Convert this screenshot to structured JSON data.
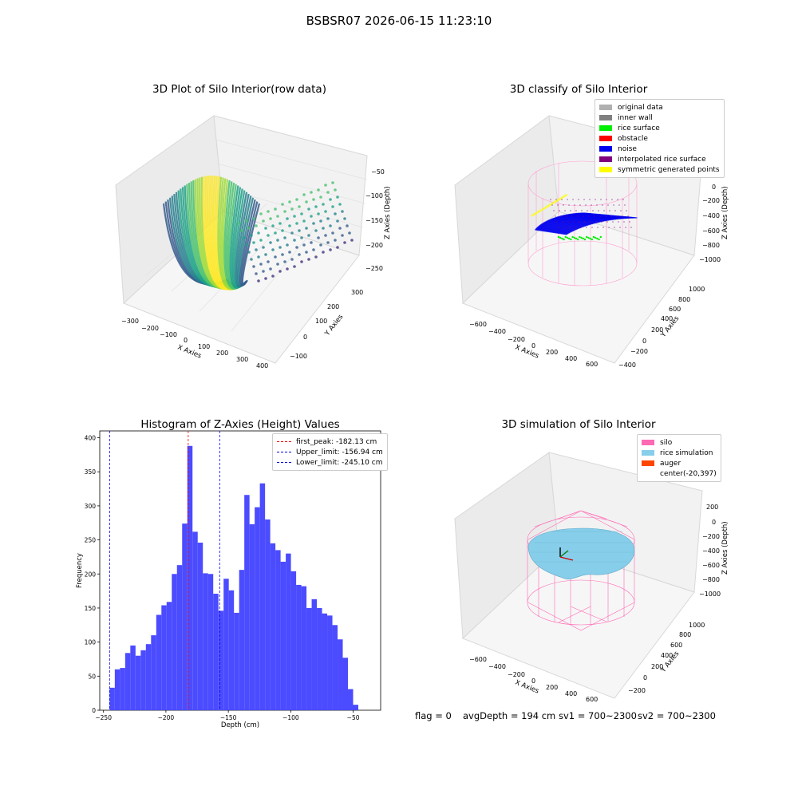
{
  "suptitle": "BSBSR07 2026-06-15 11:23:10",
  "plots": {
    "raw": {
      "title": "3D Plot of Silo Interior(row data)",
      "xlabel": "X Axies",
      "ylabel": "Y Axies",
      "zlabel": "Z Axies (Depth)",
      "x_ticks": [
        "−300",
        "−200",
        "−100",
        "0",
        "100",
        "200",
        "300",
        "400"
      ],
      "y_ticks": [
        "−100",
        "0",
        "100",
        "200",
        "300"
      ],
      "z_ticks": [
        "−50",
        "−100",
        "−150",
        "−200",
        "−250"
      ]
    },
    "classify": {
      "title": "3D classify of Silo Interior",
      "xlabel": "X Axies",
      "ylabel": "Y Axies",
      "zlabel": "Z Axies (Depth)",
      "x_ticks": [
        "−600",
        "−400",
        "−200",
        "0",
        "200",
        "400",
        "600"
      ],
      "y_ticks": [
        "−400",
        "−200",
        "0",
        "200",
        "400",
        "600",
        "800",
        "1000"
      ],
      "z_ticks": [
        "200",
        "0",
        "−200",
        "−400",
        "−600",
        "−800",
        "−1000"
      ],
      "legend": [
        {
          "label": "original data",
          "color": "#b0b0b0"
        },
        {
          "label": "inner wall",
          "color": "#808080"
        },
        {
          "label": "rice surface",
          "color": "#00ee00"
        },
        {
          "label": "obstacle",
          "color": "#ff0000"
        },
        {
          "label": "noise",
          "color": "#0000ee"
        },
        {
          "label": "interpolated rice surface",
          "color": "#800080"
        },
        {
          "label": "symmetric generated points",
          "color": "#ffff00"
        }
      ]
    },
    "simulation": {
      "title": "3D simulation of Silo Interior",
      "xlabel": "X Axies",
      "ylabel": "Y Axies",
      "zlabel": "Z Axies (Depth)",
      "x_ticks": [
        "−600",
        "−400",
        "−200",
        "0",
        "200",
        "400",
        "600"
      ],
      "y_ticks": [
        "−200",
        "0",
        "200",
        "400",
        "600",
        "800",
        "1000"
      ],
      "z_ticks": [
        "200",
        "0",
        "−200",
        "−400",
        "−600",
        "−800",
        "−1000"
      ],
      "legend": [
        {
          "label": "silo",
          "color": "#ff69b4"
        },
        {
          "label": "rice simulation",
          "color": "#87ceeb"
        },
        {
          "label": "auger",
          "color": "#ff4500"
        },
        {
          "label": "center(-20,397)",
          "color": ""
        }
      ]
    }
  },
  "chart_data": [
    {
      "type": "bar",
      "title": "Histogram of Z-Axies (Height) Values",
      "xlabel": "Depth (cm)",
      "ylabel": "Frequency",
      "xlim": [
        -253,
        -28
      ],
      "ylim": [
        0,
        410
      ],
      "bin_start": -245.1,
      "bin_width": 4.15,
      "values": [
        33,
        60,
        62,
        84,
        95,
        80,
        88,
        97,
        110,
        140,
        154,
        159,
        200,
        213,
        274,
        388,
        262,
        246,
        201,
        200,
        171,
        146,
        193,
        176,
        143,
        206,
        316,
        273,
        298,
        333,
        280,
        245,
        235,
        218,
        230,
        204,
        184,
        182,
        150,
        163,
        150,
        142,
        139,
        125,
        104,
        77,
        31,
        8
      ],
      "x_ticks": [
        -250,
        -200,
        -150,
        -100,
        -50
      ],
      "y_ticks": [
        0,
        50,
        100,
        150,
        200,
        250,
        300,
        350,
        400
      ],
      "color": "#4b4bff",
      "vlines": [
        {
          "label": "first_peak: -182.13 cm",
          "x": -182.13,
          "color": "#ff0000"
        },
        {
          "label": "Upper_limit: -156.94 cm",
          "x": -156.94,
          "color": "#0000ee"
        },
        {
          "label": "Lower_limit: -245.10 cm",
          "x": -245.1,
          "color": "#0000ee"
        }
      ]
    }
  ],
  "footer": {
    "flag": "flag = 0",
    "avg_depth": "avgDepth = 194 cm",
    "sv1": "sv1 = 700~2300",
    "sv2": "sv2 = 700~2300"
  }
}
